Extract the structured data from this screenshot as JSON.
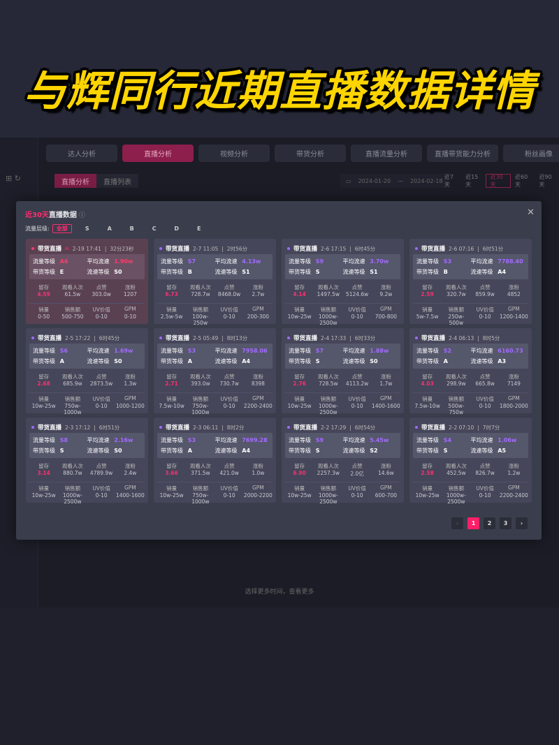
{
  "banner_title": "与辉同行近期直播数据详情",
  "nav": {
    "tabs": [
      "达人分析",
      "直播分析",
      "视频分析",
      "带货分析",
      "直播流量分析",
      "直播带货能力分析",
      "粉丝画像"
    ],
    "active_tab": 1,
    "subtabs": [
      "直播分析",
      "直播列表"
    ],
    "active_subtab": 0,
    "date_start": "2024-01-20",
    "date_sep": "—",
    "date_end": "2024-02-18",
    "ranges": [
      "近7天",
      "近15天",
      "近30天",
      "近60天",
      "近90天"
    ],
    "active_range": 2
  },
  "bottom_hint": "选择更多时间，查看更多",
  "modal": {
    "title_highlight": "近30天",
    "title_rest": "直播数据",
    "help_icon": "question-circle-icon",
    "close_icon": "close-icon",
    "filter_label": "流量层级:",
    "filter_options": [
      "全部",
      "S",
      "A",
      "B",
      "C",
      "D",
      "E"
    ],
    "filter_active": 0,
    "labels": {
      "flow_level": "流量等级",
      "avg_speed": "平均流速",
      "sales_level": "带货等级",
      "speed_level": "流速等级",
      "retention": "留存",
      "viewers": "观看人次",
      "likes": "点赞",
      "fans": "涨粉",
      "volume": "销量",
      "revenue": "销售额",
      "uv": "UV价值",
      "gpm": "GPM"
    },
    "cards": [
      {
        "type": "带货直播",
        "tag": "Ai",
        "date": "2-19 17:41",
        "duration": "32分23秒",
        "flow_level": "A6",
        "avg_speed": "1.90w",
        "sales_level": "E",
        "speed_level": "S0",
        "retention": "4.59",
        "viewers": "61.5w",
        "likes": "303.0w",
        "fans": "1207",
        "volume": "0-50",
        "revenue": "500-750",
        "uv": "0-10",
        "gpm": "0-10"
      },
      {
        "type": "带货直播",
        "date": "2-7 11:05",
        "duration": "2时56分",
        "flow_level": "S7",
        "avg_speed": "4.13w",
        "sales_level": "B",
        "speed_level": "S1",
        "retention": "6.73",
        "viewers": "728.7w",
        "likes": "8468.0w",
        "fans": "2.7w",
        "volume": "2.5w-5w",
        "revenue": "100w-250w",
        "uv": "0-10",
        "gpm": "200-300"
      },
      {
        "type": "带货直播",
        "date": "2-6 17:15",
        "duration": "6时45分",
        "flow_level": "S9",
        "avg_speed": "3.70w",
        "sales_level": "S",
        "speed_level": "S1",
        "retention": "4.14",
        "viewers": "1497.5w",
        "likes": "5124.6w",
        "fans": "9.2w",
        "volume": "10w-25w",
        "revenue": "1000w-2500w",
        "uv": "0-10",
        "gpm": "700-800"
      },
      {
        "type": "带货直播",
        "date": "2-6 07:16",
        "duration": "6时51分",
        "flow_level": "S3",
        "avg_speed": "7788.40",
        "sales_level": "B",
        "speed_level": "A4",
        "retention": "2.59",
        "viewers": "320.7w",
        "likes": "859.9w",
        "fans": "4852",
        "volume": "5w-7.5w",
        "revenue": "250w-500w",
        "uv": "0-10",
        "gpm": "1200-1400"
      },
      {
        "type": "带货直播",
        "date": "2-5 17:22",
        "duration": "6时45分",
        "flow_level": "S6",
        "avg_speed": "1.69w",
        "sales_level": "A",
        "speed_level": "S0",
        "retention": "2.68",
        "viewers": "685.9w",
        "likes": "2873.5w",
        "fans": "1.3w",
        "volume": "10w-25w",
        "revenue": "750w-1000w",
        "uv": "0-10",
        "gpm": "1000-1200"
      },
      {
        "type": "带货直播",
        "date": "2-5 05:49",
        "duration": "8时13分",
        "flow_level": "S3",
        "avg_speed": "7958.06",
        "sales_level": "A",
        "speed_level": "A4",
        "retention": "2.71",
        "viewers": "393.0w",
        "likes": "730.7w",
        "fans": "8398",
        "volume": "7.5w-10w",
        "revenue": "750w-1000w",
        "uv": "0-10",
        "gpm": "2200-2400"
      },
      {
        "type": "带货直播",
        "date": "2-4 17:33",
        "duration": "6时33分",
        "flow_level": "S7",
        "avg_speed": "1.88w",
        "sales_level": "S",
        "speed_level": "S0",
        "retention": "2.76",
        "viewers": "728.5w",
        "likes": "4113.2w",
        "fans": "1.7w",
        "volume": "10w-25w",
        "revenue": "1000w-2500w",
        "uv": "0-10",
        "gpm": "1400-1600"
      },
      {
        "type": "带货直播",
        "date": "2-4 06:13",
        "duration": "8时5分",
        "flow_level": "S2",
        "avg_speed": "6160.73",
        "sales_level": "A",
        "speed_level": "A3",
        "retention": "4.03",
        "viewers": "298.9w",
        "likes": "665.8w",
        "fans": "7149",
        "volume": "7.5w-10w",
        "revenue": "500w-750w",
        "uv": "0-10",
        "gpm": "1800-2000"
      },
      {
        "type": "带货直播",
        "date": "2-3 17:12",
        "duration": "6时51分",
        "flow_level": "S8",
        "avg_speed": "2.16w",
        "sales_level": "S",
        "speed_level": "S0",
        "retention": "3.14",
        "viewers": "880.7w",
        "likes": "4789.9w",
        "fans": "2.4w",
        "volume": "10w-25w",
        "revenue": "1000w-2500w",
        "uv": "0-10",
        "gpm": "1400-1600"
      },
      {
        "type": "带货直播",
        "date": "2-3 06:11",
        "duration": "8时2分",
        "flow_level": "S3",
        "avg_speed": "7699.28",
        "sales_level": "A",
        "speed_level": "A4",
        "retention": "3.66",
        "viewers": "371.5w",
        "likes": "421.0w",
        "fans": "1.0w",
        "volume": "10w-25w",
        "revenue": "750w-1000w",
        "uv": "0-10",
        "gpm": "2000-2200"
      },
      {
        "type": "带货直播",
        "date": "2-2 17:29",
        "duration": "6时54分",
        "flow_level": "S9",
        "avg_speed": "5.45w",
        "sales_level": "S",
        "speed_level": "S2",
        "retention": "6.90",
        "viewers": "2257.3w",
        "likes": "2.0亿",
        "fans": "14.6w",
        "volume": "10w-25w",
        "revenue": "1000w-2500w",
        "uv": "0-10",
        "gpm": "600-700"
      },
      {
        "type": "带货直播",
        "date": "2-2 07:10",
        "duration": "7时7分",
        "flow_level": "S4",
        "avg_speed": "1.06w",
        "sales_level": "S",
        "speed_level": "A5",
        "retention": "2.58",
        "viewers": "452.5w",
        "likes": "826.7w",
        "fans": "1.2w",
        "volume": "10w-25w",
        "revenue": "1000w-2500w",
        "uv": "0-10",
        "gpm": "2200-2400"
      }
    ],
    "pagination": {
      "prev": "‹",
      "pages": [
        "1",
        "2",
        "3"
      ],
      "active": 0,
      "next": "›"
    }
  },
  "colors": {
    "accent": "#ff1f68",
    "purple": "#a36bff",
    "title_yellow": "#ffd500"
  }
}
